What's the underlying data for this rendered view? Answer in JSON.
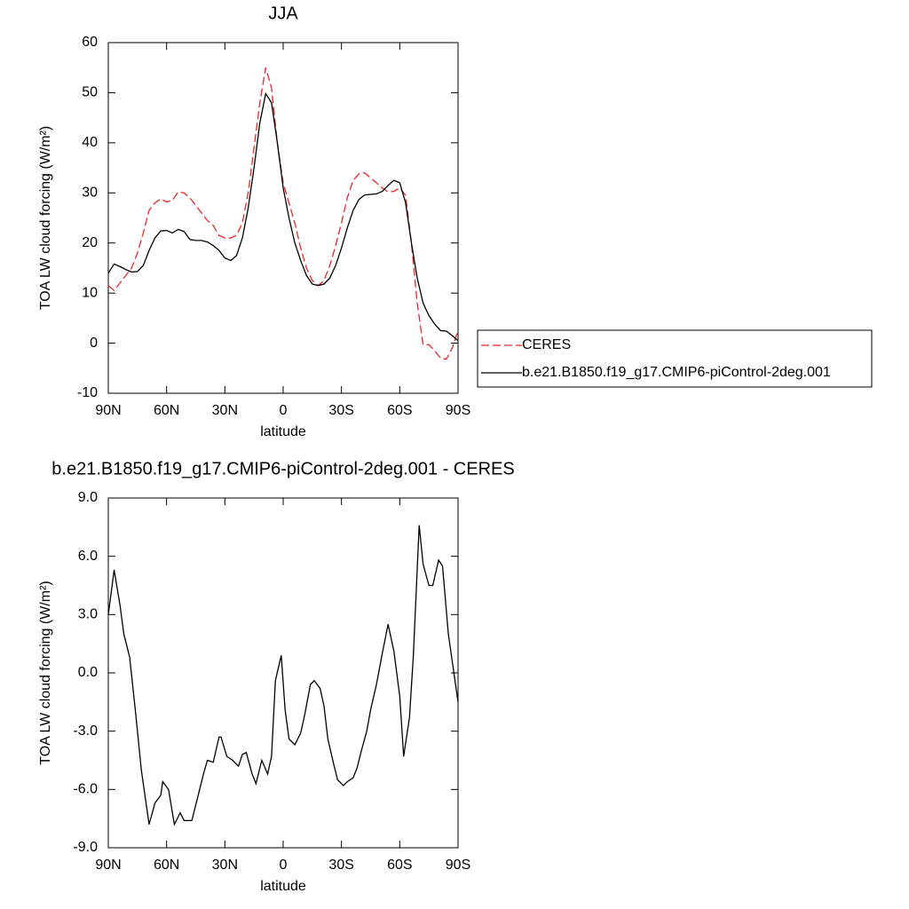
{
  "chart_data": [
    {
      "type": "line",
      "title": "JJA",
      "xlabel": "latitude",
      "ylabel": "TOA LW cloud forcing (W/m²)",
      "x": [
        90,
        87,
        84,
        81,
        78,
        75,
        72,
        69,
        66,
        63,
        60,
        57,
        54,
        51,
        48,
        45,
        42,
        39,
        36,
        33,
        30,
        27,
        24,
        21,
        18,
        15,
        12,
        9,
        6,
        3,
        0,
        -3,
        -6,
        -9,
        -12,
        -15,
        -18,
        -21,
        -24,
        -27,
        -30,
        -33,
        -36,
        -39,
        -42,
        -45,
        -48,
        -51,
        -54,
        -57,
        -60,
        -63,
        -66,
        -69,
        -72,
        -75,
        -78,
        -81,
        -84,
        -87,
        -90
      ],
      "series": [
        {
          "name": "CERES",
          "color": "#e8262a",
          "dash": true,
          "values": [
            11.5,
            10.5,
            12,
            13.5,
            15,
            18,
            22,
            26.5,
            28,
            28.8,
            28.2,
            28.5,
            30.2,
            30,
            29,
            27.5,
            26,
            24.5,
            23.5,
            21.5,
            21,
            21,
            21.5,
            24,
            30,
            39,
            48,
            55,
            51,
            40,
            32,
            28,
            24,
            19,
            15,
            12.5,
            11.5,
            12.5,
            15.5,
            19.5,
            24,
            29,
            32.5,
            33.8,
            34,
            33,
            32,
            31,
            30.2,
            30.3,
            31,
            29.5,
            20,
            8,
            -0.3,
            -0.3,
            -1.5,
            -3,
            -3.2,
            -1,
            2.5
          ]
        },
        {
          "name": "b.e21.B1850.f19_g17.CMIP6-piControl-2deg.001",
          "color": "#000000",
          "dash": false,
          "values": [
            14,
            15.8,
            15.3,
            14.7,
            14.2,
            14.3,
            15.5,
            18.5,
            21,
            22.4,
            22.5,
            22,
            22.7,
            22.3,
            20.7,
            20.5,
            20.5,
            20.2,
            19.5,
            18.5,
            17,
            16.5,
            17.5,
            21,
            27,
            35,
            44,
            49.8,
            48,
            40,
            31,
            25,
            20,
            16.5,
            13.5,
            11.8,
            11.5,
            11.8,
            13,
            15.5,
            19,
            23,
            26.5,
            28.7,
            29.6,
            29.7,
            29.8,
            30.3,
            31.5,
            32.5,
            32,
            28,
            20,
            13,
            8,
            5.5,
            3.8,
            2.5,
            2.4,
            1.5,
            0.5
          ]
        }
      ],
      "xlim": [
        90,
        -90
      ],
      "xticks": [
        {
          "value": 90,
          "label": "90N"
        },
        {
          "value": 60,
          "label": "60N"
        },
        {
          "value": 30,
          "label": "30N"
        },
        0,
        {
          "value": -30,
          "label": "30S"
        },
        {
          "value": -60,
          "label": "60S"
        },
        {
          "value": -90,
          "label": "90S"
        }
      ],
      "ylim": [
        -10,
        60
      ],
      "yticks": [
        -10,
        0,
        10,
        20,
        30,
        40,
        50,
        60
      ],
      "legend": "right"
    },
    {
      "type": "line",
      "title": "b.e21.B1850.f19_g17.CMIP6-piControl-2deg.001 - CERES",
      "xlabel": "latitude",
      "ylabel": "TOA LW cloud forcing (W/m²)",
      "x": [
        90,
        87,
        84,
        82,
        79,
        76,
        73,
        69,
        66,
        63,
        62,
        59,
        56,
        53,
        51,
        47,
        44,
        41,
        39,
        36,
        33,
        32,
        29,
        26,
        23,
        21,
        19,
        16,
        14,
        11,
        8,
        6,
        4,
        1,
        -1,
        -3,
        -6,
        -9,
        -11,
        -14,
        -16,
        -19,
        -21,
        -23,
        -26,
        -28,
        -31,
        -33,
        -36,
        -38,
        -40,
        -43,
        -45,
        -48,
        -51,
        -54,
        -57,
        -60,
        -62,
        -65,
        -67,
        -70,
        -72,
        -75,
        -77,
        -80,
        -82,
        -85,
        -90
      ],
      "series": [
        {
          "color": "#000000",
          "dash": false,
          "values": [
            3.0,
            5.3,
            3.5,
            2.0,
            0.8,
            -2,
            -5,
            -7.8,
            -6.7,
            -6.3,
            -5.6,
            -6.0,
            -7.8,
            -7.2,
            -7.6,
            -7.6,
            -6.4,
            -5.2,
            -4.5,
            -4.6,
            -3.3,
            -3.3,
            -4.3,
            -4.5,
            -4.8,
            -4.2,
            -4.1,
            -5.2,
            -5.7,
            -4.5,
            -5.2,
            -4.3,
            -0.4,
            0.9,
            -1.9,
            -3.4,
            -3.7,
            -3.1,
            -2.2,
            -0.6,
            -0.4,
            -0.8,
            -1.7,
            -3.4,
            -4.7,
            -5.5,
            -5.8,
            -5.6,
            -5.4,
            -4.9,
            -4.1,
            -3.0,
            -1.9,
            -0.6,
            1.0,
            2.5,
            1.1,
            -1.2,
            -4.3,
            -2.3,
            0.9,
            7.6,
            5.6,
            4.5,
            4.5,
            5.8,
            5.5,
            2.0,
            -1.5
          ]
        }
      ],
      "xlim": [
        90,
        -90
      ],
      "xticks": [
        {
          "value": 90,
          "label": "90N"
        },
        {
          "value": 60,
          "label": "60N"
        },
        {
          "value": 30,
          "label": "30N"
        },
        0,
        {
          "value": -30,
          "label": "30S"
        },
        {
          "value": -60,
          "label": "60S"
        },
        {
          "value": -90,
          "label": "90S"
        }
      ],
      "ylim": [
        -9,
        9
      ],
      "yticks": [
        {
          "value": -9,
          "label": "-9.0"
        },
        {
          "value": -6,
          "label": "-6.0"
        },
        {
          "value": -3,
          "label": "-3.0"
        },
        {
          "value": 0,
          "label": "0.0"
        },
        {
          "value": 3,
          "label": "3.0"
        },
        {
          "value": 6,
          "label": "6.0"
        },
        {
          "value": 9,
          "label": "9.0"
        }
      ]
    }
  ]
}
